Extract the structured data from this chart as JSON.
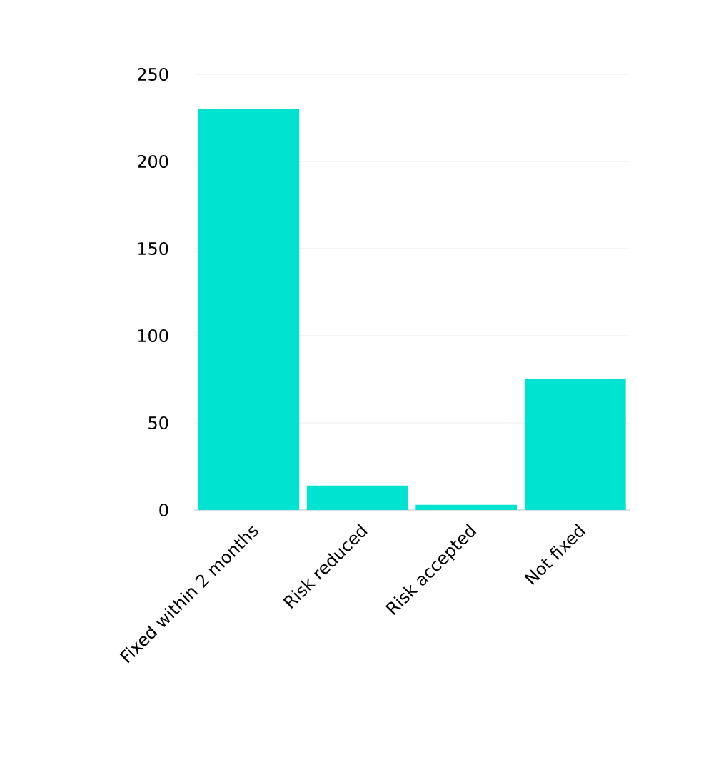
{
  "chart_data": {
    "type": "bar",
    "categories": [
      "Fixed within 2 months",
      "Risk reduced",
      "Risk accepted",
      "Not fixed"
    ],
    "values": [
      230,
      14,
      3,
      75
    ],
    "color": "#00e3d0",
    "ylim": [
      0,
      250
    ],
    "yticks": [
      0,
      50,
      100,
      150,
      200,
      250
    ],
    "grid": "y"
  }
}
